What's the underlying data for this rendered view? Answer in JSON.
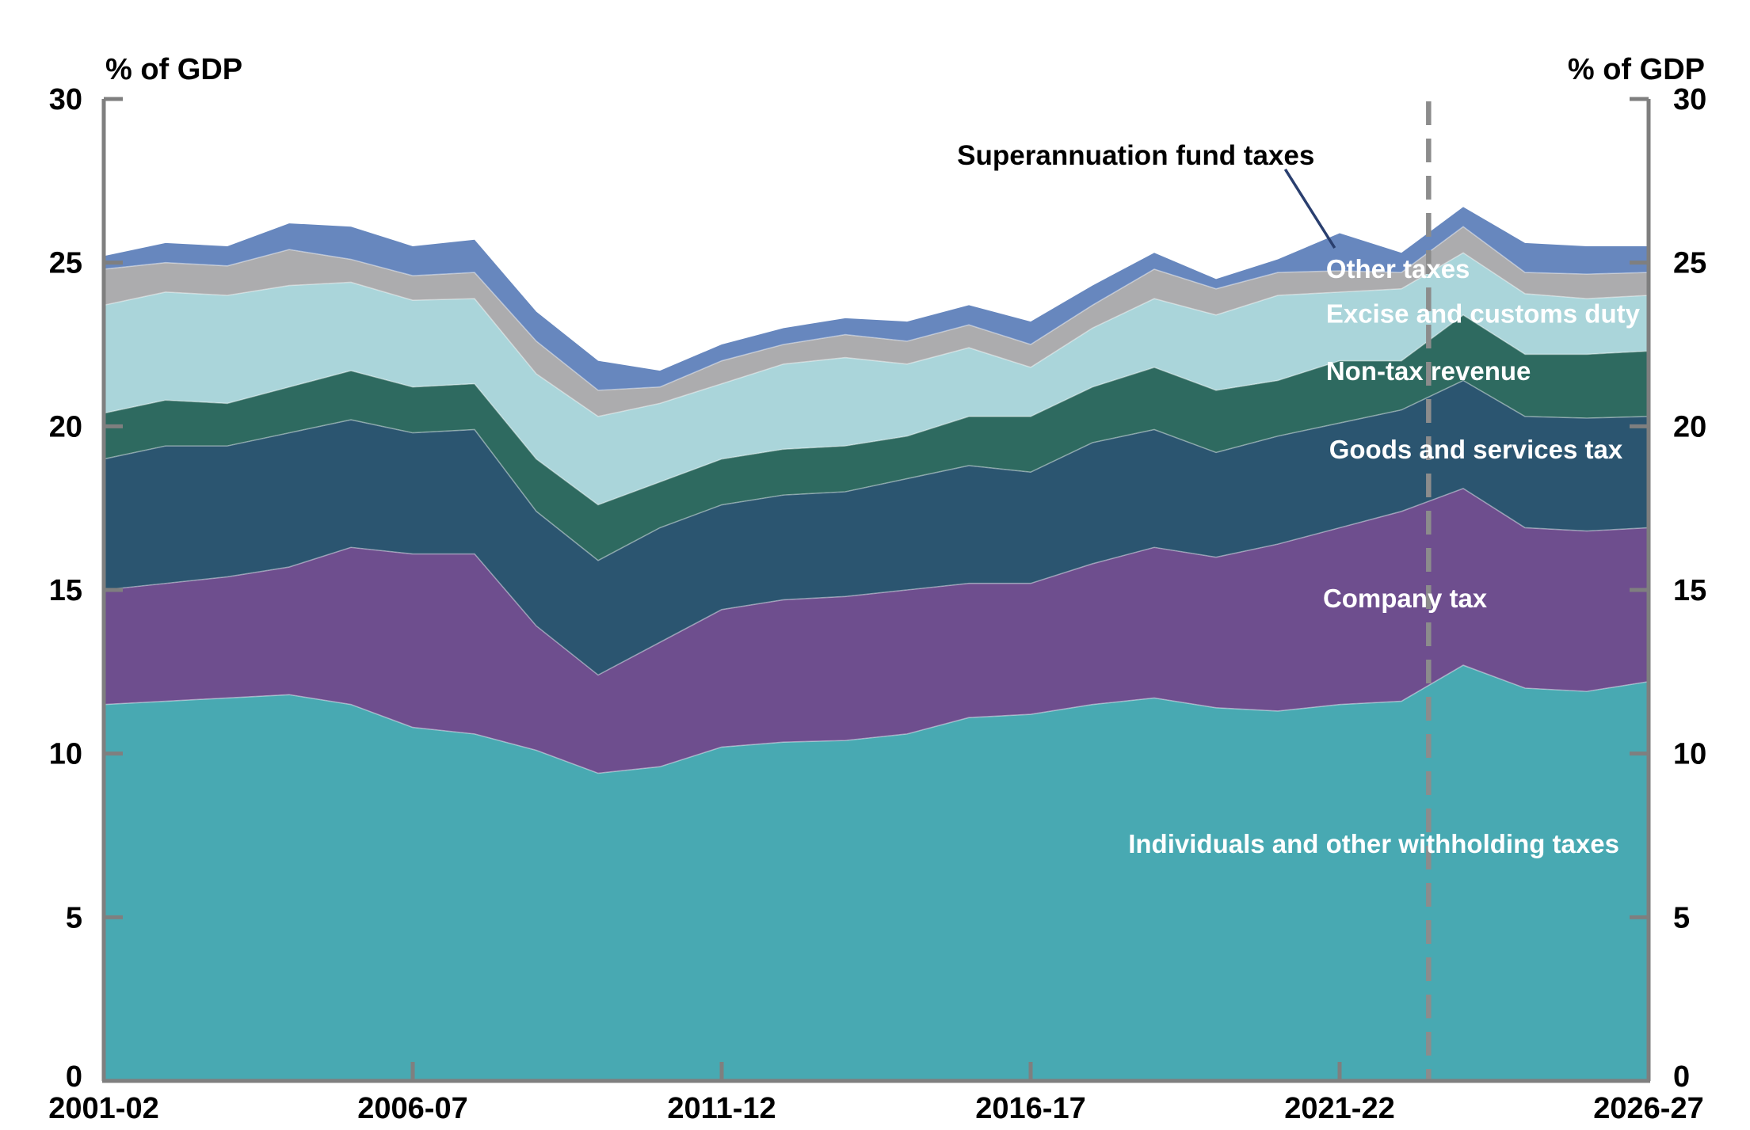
{
  "chart_data": {
    "type": "area",
    "stacked": true,
    "ylabel": "% of GDP",
    "ylim": [
      0,
      30
    ],
    "yticks": [
      0,
      5,
      10,
      15,
      20,
      25,
      30
    ],
    "grid": false,
    "axis_color": "#7f7f7f",
    "categories": [
      "2001-02",
      "2002-03",
      "2003-04",
      "2004-05",
      "2005-06",
      "2006-07",
      "2007-08",
      "2008-09",
      "2009-10",
      "2010-11",
      "2011-12",
      "2012-13",
      "2013-14",
      "2014-15",
      "2015-16",
      "2016-17",
      "2017-18",
      "2018-19",
      "2019-20",
      "2020-21",
      "2021-22",
      "2022-23",
      "2023-24",
      "2024-25",
      "2025-26",
      "2026-27"
    ],
    "xticks": [
      {
        "index": 0,
        "label": "2001-02"
      },
      {
        "index": 5,
        "label": "2006-07"
      },
      {
        "index": 10,
        "label": "2011-12"
      },
      {
        "index": 15,
        "label": "2016-17"
      },
      {
        "index": 20,
        "label": "2021-22"
      },
      {
        "index": 25,
        "label": "2026-27"
      }
    ],
    "series": [
      {
        "name": "Individuals and other withholding taxes",
        "color": "#48a9b2",
        "values": [
          11.5,
          11.6,
          11.7,
          11.8,
          11.5,
          10.8,
          10.6,
          10.1,
          9.4,
          9.6,
          10.2,
          10.35,
          10.4,
          10.6,
          11.1,
          11.2,
          11.5,
          11.7,
          11.4,
          11.3,
          11.5,
          11.6,
          12.7,
          12.0,
          11.9,
          12.2
        ]
      },
      {
        "name": "Company tax",
        "color": "#6e4e8e",
        "values": [
          3.5,
          3.6,
          3.7,
          3.9,
          4.8,
          5.3,
          5.5,
          3.8,
          3.0,
          3.8,
          4.2,
          4.35,
          4.4,
          4.4,
          4.1,
          4.0,
          4.3,
          4.6,
          4.6,
          5.1,
          5.4,
          5.8,
          5.4,
          4.9,
          4.9,
          4.7
        ]
      },
      {
        "name": "Goods and services tax",
        "color": "#2b5570",
        "values": [
          4.0,
          4.2,
          4.0,
          4.1,
          3.9,
          3.7,
          3.8,
          3.5,
          3.5,
          3.5,
          3.2,
          3.2,
          3.2,
          3.4,
          3.6,
          3.4,
          3.7,
          3.6,
          3.2,
          3.3,
          3.2,
          3.1,
          3.3,
          3.4,
          3.45,
          3.4
        ]
      },
      {
        "name": "Non-tax revenue",
        "color": "#2e6a60",
        "values": [
          1.4,
          1.4,
          1.3,
          1.4,
          1.5,
          1.4,
          1.4,
          1.6,
          1.7,
          1.4,
          1.4,
          1.4,
          1.4,
          1.3,
          1.5,
          1.7,
          1.7,
          1.9,
          1.9,
          1.7,
          1.9,
          1.5,
          2.0,
          1.9,
          1.95,
          2.0
        ]
      },
      {
        "name": "Excise and customs duty",
        "color": "#aad5da",
        "values": [
          3.3,
          3.3,
          3.3,
          3.1,
          2.7,
          2.65,
          2.6,
          2.6,
          2.7,
          2.4,
          2.3,
          2.6,
          2.7,
          2.2,
          2.1,
          1.5,
          1.8,
          2.1,
          2.3,
          2.6,
          2.1,
          2.2,
          1.9,
          1.85,
          1.7,
          1.7
        ]
      },
      {
        "name": "Other taxes",
        "color": "#acacae",
        "values": [
          1.1,
          0.9,
          0.9,
          1.1,
          0.7,
          0.75,
          0.8,
          1.0,
          0.8,
          0.5,
          0.7,
          0.6,
          0.7,
          0.7,
          0.7,
          0.7,
          0.7,
          0.9,
          0.8,
          0.7,
          0.65,
          0.5,
          0.8,
          0.65,
          0.75,
          0.7
        ]
      },
      {
        "name": "Superannuation fund taxes",
        "color": "#6787be",
        "values": [
          0.4,
          0.6,
          0.6,
          0.8,
          1.0,
          0.9,
          1.0,
          0.9,
          0.9,
          0.5,
          0.5,
          0.5,
          0.5,
          0.6,
          0.6,
          0.7,
          0.6,
          0.5,
          0.3,
          0.4,
          1.15,
          0.6,
          0.6,
          0.9,
          0.85,
          0.8
        ]
      }
    ],
    "forecast_divider": {
      "x_index": 21.44,
      "color": "#8c8c8c"
    },
    "annotations": [
      {
        "id": "superannuation-label",
        "text": "Superannuation fund taxes",
        "xi": 13.81,
        "v": 28.3,
        "fill": "#000000",
        "size": 35,
        "leader": {
          "x1i": 19.12,
          "v1": 27.85,
          "x2i": 19.92,
          "v2": 25.45,
          "color": "#2a3f6f"
        }
      },
      {
        "id": "other-taxes-label",
        "text": "Other taxes",
        "xi": 19.78,
        "v": 24.82,
        "fill": "#ffffff",
        "size": 33
      },
      {
        "id": "excise-label",
        "text": "Excise and customs duty",
        "xi": 19.78,
        "v": 23.45,
        "fill": "#ffffff",
        "size": 33
      },
      {
        "id": "non-tax-label",
        "text": "Non-tax revenue",
        "xi": 19.78,
        "v": 21.7,
        "fill": "#ffffff",
        "size": 33
      },
      {
        "id": "gst-label",
        "text": "Goods and services tax",
        "xi": 19.83,
        "v": 19.3,
        "fill": "#ffffff",
        "size": 33
      },
      {
        "id": "company-label",
        "text": "Company tax",
        "xi": 19.73,
        "v": 14.75,
        "fill": "#ffffff",
        "size": 33
      },
      {
        "id": "individuals-label",
        "text": "Individuals and other withholding taxes",
        "xi": 16.58,
        "v": 7.25,
        "fill": "#ffffff",
        "size": 33
      }
    ]
  }
}
